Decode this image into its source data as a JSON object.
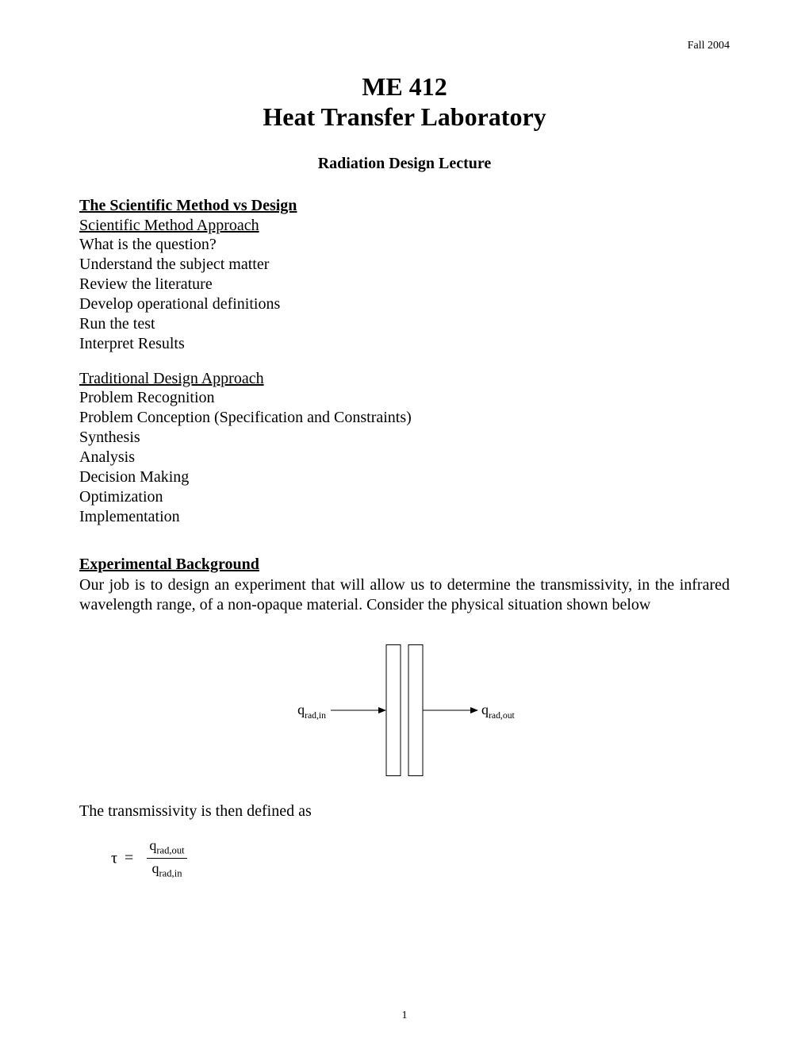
{
  "header": {
    "date": "Fall 2004"
  },
  "title": {
    "line1": "ME 412",
    "line2": "Heat Transfer Laboratory",
    "subtitle": "Radiation Design Lecture"
  },
  "sections": {
    "scientific_vs_design": {
      "heading": "The Scientific Method vs Design",
      "scientific": {
        "subheading": "Scientific Method Approach",
        "items": [
          "What is the question?",
          "Understand the subject matter",
          "Review the literature",
          "Develop operational definitions",
          "Run the test",
          "Interpret Results"
        ]
      },
      "traditional": {
        "subheading": "Traditional Design Approach",
        "items": [
          "Problem Recognition",
          "Problem Conception (Specification and Constraints)",
          "Synthesis",
          "Analysis",
          "Decision Making",
          "Optimization",
          "Implementation"
        ]
      }
    },
    "experimental": {
      "heading": "Experimental Background",
      "paragraph": "Our job is to design an experiment that will allow us to determine the transmissivity, in the infrared wavelength range, of a non-opaque material.  Consider the physical situation shown below"
    },
    "diagram": {
      "label_in": "q",
      "label_in_sub": "rad,in",
      "label_out": "q",
      "label_out_sub": "rad,out",
      "slab_width": 18,
      "slab_height": 165,
      "slab_gap": 10,
      "arrow_length": 70,
      "stroke": "#000000",
      "stroke_width": 1,
      "label_fontsize": 18
    },
    "transmissivity": {
      "text": "The transmissivity is then defined as",
      "equation": {
        "lhs": "τ",
        "eq": "=",
        "num": "q",
        "num_sub": "rad,out",
        "den": "q",
        "den_sub": "rad,in"
      }
    }
  },
  "page_number": "1"
}
